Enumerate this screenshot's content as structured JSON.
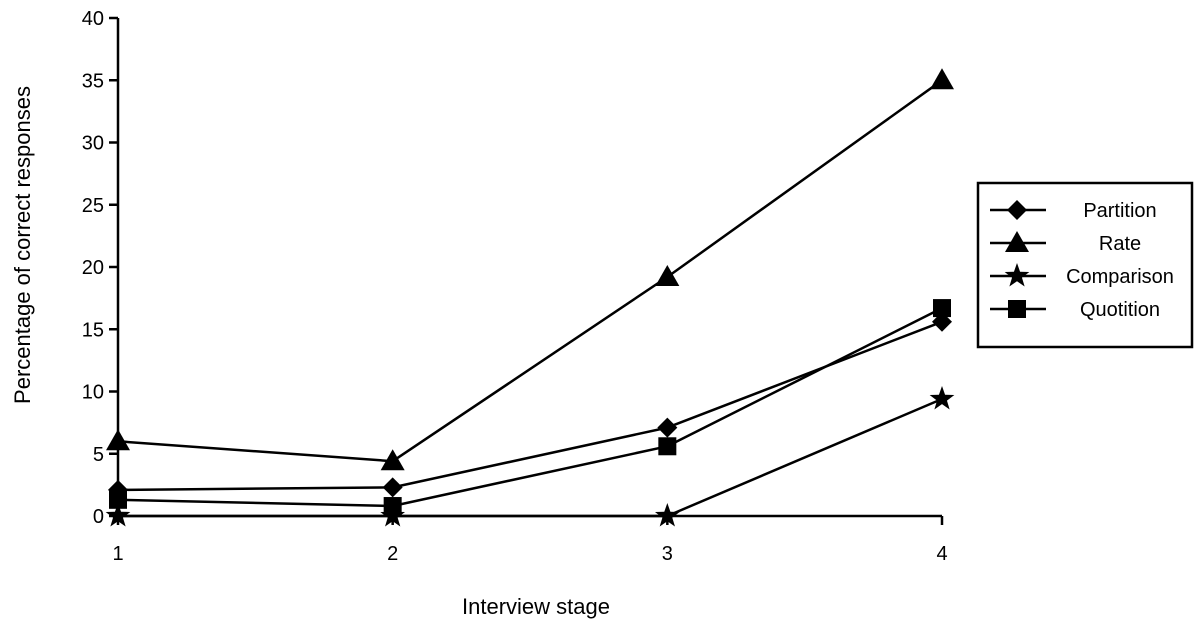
{
  "chart_data": {
    "type": "line",
    "xlabel": "Interview stage",
    "ylabel": "Percentage of correct responses",
    "x": [
      1,
      2,
      3,
      4
    ],
    "x_tick_labels": [
      "1",
      "2",
      "3",
      "4"
    ],
    "ylim": [
      0,
      40
    ],
    "y_ticks": [
      0,
      5,
      10,
      15,
      20,
      25,
      30,
      35,
      40
    ],
    "y_tick_labels": [
      "0",
      "5",
      "10",
      "15",
      "20",
      "25",
      "30",
      "35",
      "40"
    ],
    "grid": false,
    "legend_position": "right",
    "series": [
      {
        "name": "Partition",
        "marker": "diamond",
        "values": [
          2.1,
          2.3,
          7.1,
          15.6
        ]
      },
      {
        "name": "Rate",
        "marker": "triangle",
        "values": [
          6.0,
          4.4,
          19.2,
          35.0
        ]
      },
      {
        "name": "Comparison",
        "marker": "star",
        "values": [
          0.0,
          0.0,
          0.0,
          9.4
        ]
      },
      {
        "name": "Quotition",
        "marker": "square",
        "values": [
          1.3,
          0.8,
          5.6,
          16.7
        ]
      }
    ],
    "line_color": "#000000"
  }
}
